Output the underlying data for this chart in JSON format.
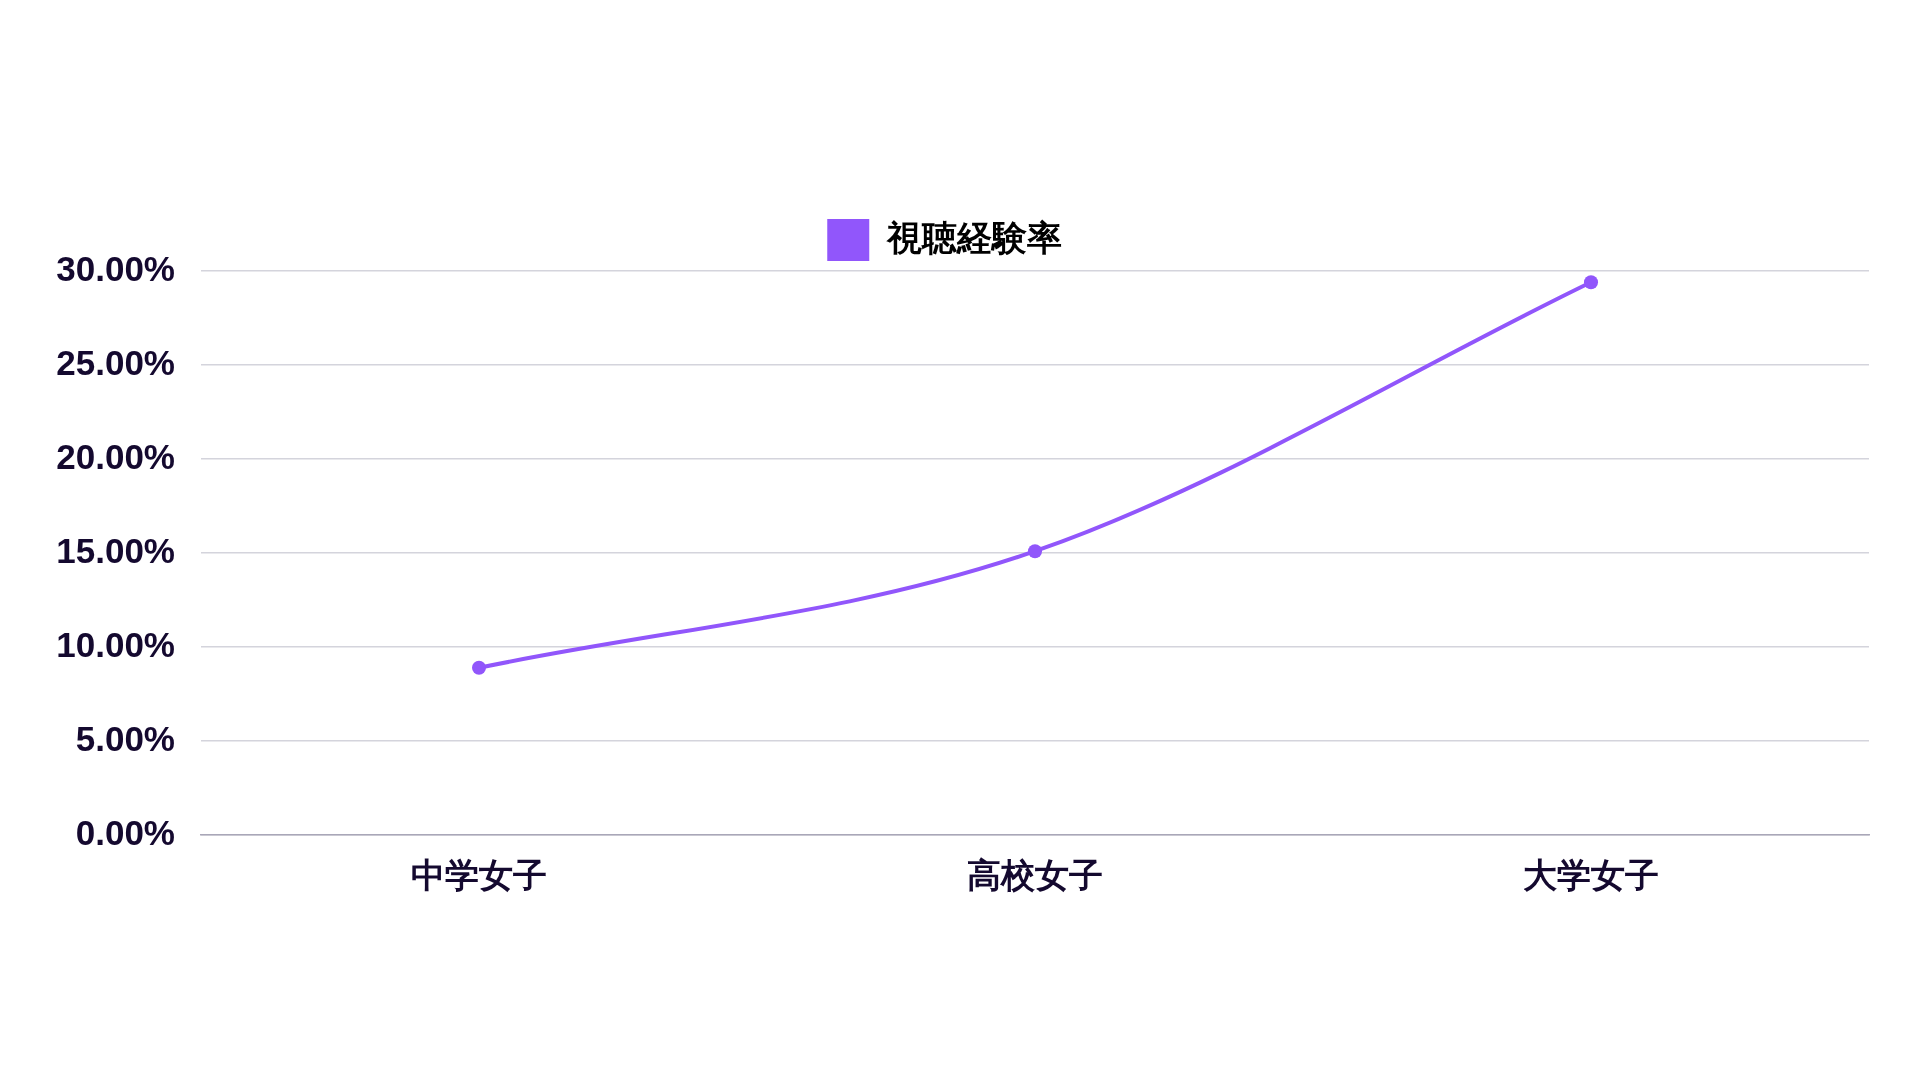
{
  "chart_data": {
    "type": "line",
    "categories": [
      "中学女子",
      "高校女子",
      "大学女子"
    ],
    "series": [
      {
        "name": "視聴経験率",
        "color": "#9156fb",
        "values": [
          8.9,
          15.1,
          29.4
        ]
      }
    ],
    "ylim": [
      0,
      30
    ],
    "yticks": [
      {
        "value": 0,
        "label": "0.00%"
      },
      {
        "value": 5,
        "label": "5.00%"
      },
      {
        "value": 10,
        "label": "10.00%"
      },
      {
        "value": 15,
        "label": "15.00%"
      },
      {
        "value": 20,
        "label": "20.00%"
      },
      {
        "value": 25,
        "label": "25.00%"
      },
      {
        "value": 30,
        "label": "30.00%"
      }
    ],
    "grid": "y",
    "legend": "top",
    "marker": "circle",
    "line_style": "solid"
  }
}
